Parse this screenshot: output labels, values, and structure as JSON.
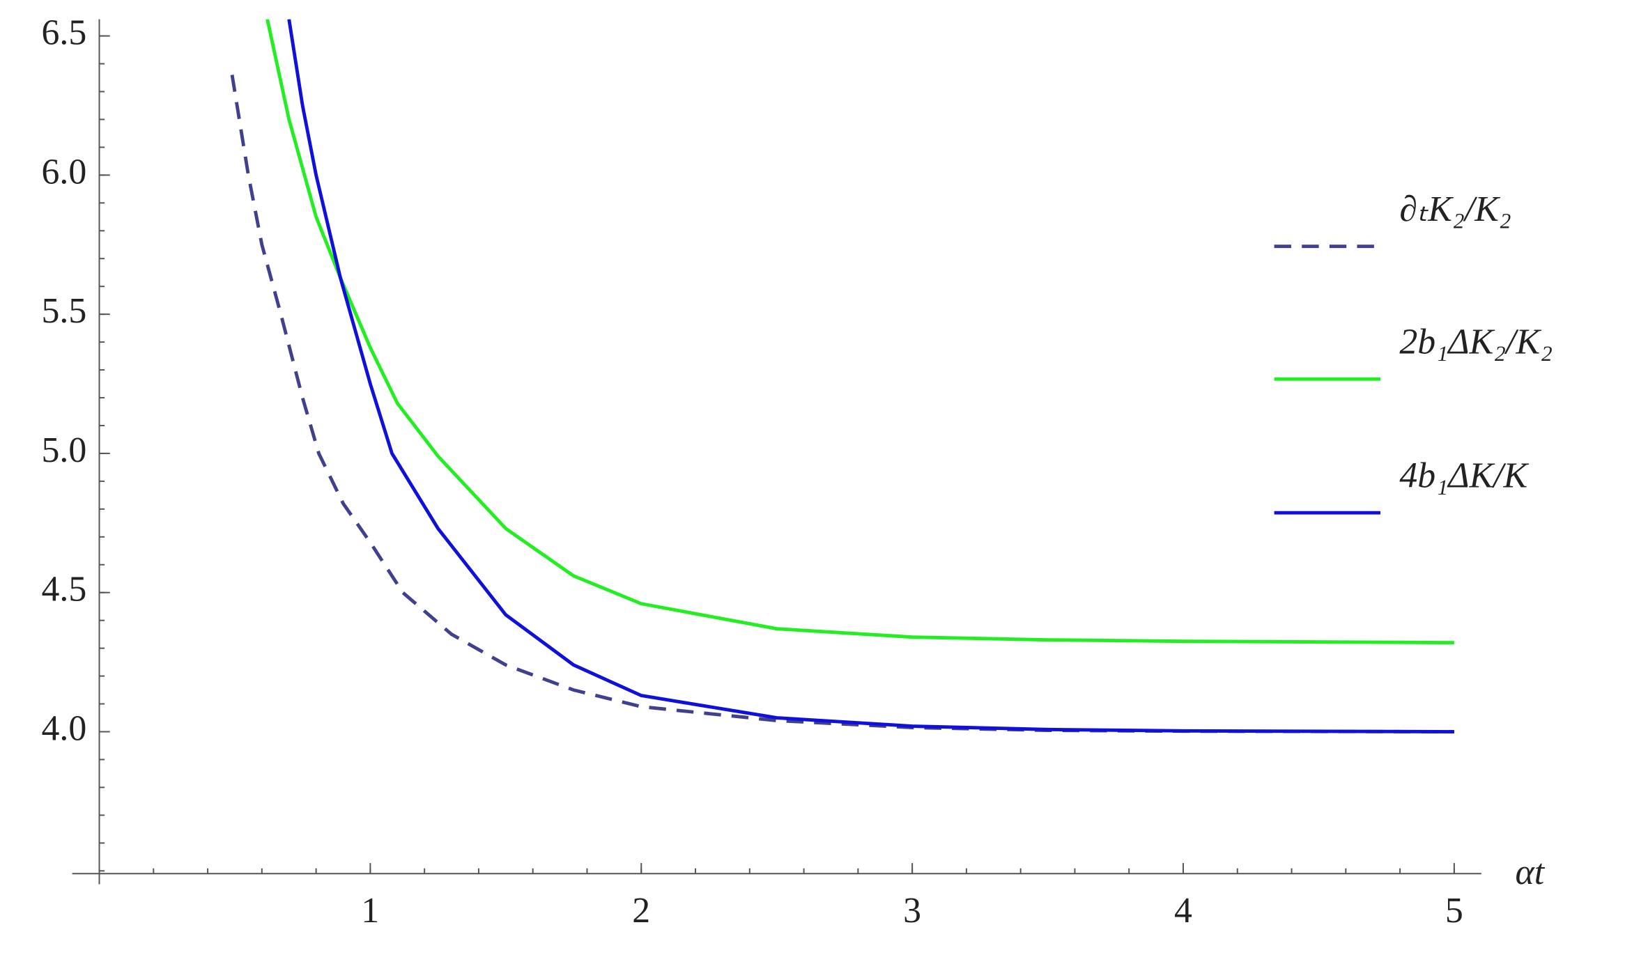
{
  "chart_data": {
    "type": "line",
    "x_label": "αt",
    "xlim": [
      -0.1,
      5.1
    ],
    "ylim": [
      3.49,
      6.56
    ],
    "xticks": [
      1,
      2,
      3,
      4,
      5
    ],
    "yticks": [
      {
        "value": 4,
        "label": "4.0"
      },
      {
        "value": 4.5,
        "label": "4.5"
      },
      {
        "value": 5,
        "label": "5.0"
      },
      {
        "value": 5.5,
        "label": "5.5"
      },
      {
        "value": 6,
        "label": "6.0"
      },
      {
        "value": 6.5,
        "label": "6.5"
      }
    ],
    "legend": "right",
    "series": [
      {
        "name": "∂ₜK₂/K₂",
        "color": "#40408f",
        "dashed": true,
        "x": [
          0.49,
          0.55,
          0.6,
          0.67,
          0.75,
          0.81,
          0.9,
          1.0,
          1.12,
          1.3,
          1.5,
          1.75,
          2.0,
          2.5,
          3.0,
          3.5,
          4.0,
          5.0
        ],
        "values": [
          6.36,
          6.0,
          5.75,
          5.5,
          5.2,
          5.0,
          4.82,
          4.68,
          4.5,
          4.35,
          4.24,
          4.15,
          4.09,
          4.04,
          4.015,
          4.005,
          4.002,
          4.0
        ]
      },
      {
        "name": "2b₁ΔK₂/K₂",
        "color": "#22ee22",
        "dashed": false,
        "x": [
          0.62,
          0.7,
          0.8,
          0.89,
          1.0,
          1.1,
          1.25,
          1.5,
          1.75,
          2.0,
          2.5,
          3.0,
          3.5,
          4.0,
          5.0
        ],
        "values": [
          6.56,
          6.2,
          5.85,
          5.63,
          5.38,
          5.18,
          4.99,
          4.73,
          4.56,
          4.46,
          4.37,
          4.34,
          4.33,
          4.325,
          4.32
        ]
      },
      {
        "name": "4b₁ΔK/K",
        "color": "#1010dd",
        "dashed": false,
        "x": [
          0.7,
          0.75,
          0.8,
          0.89,
          1.0,
          1.08,
          1.25,
          1.5,
          1.75,
          2.0,
          2.5,
          3.0,
          3.5,
          4.0,
          5.0
        ],
        "values": [
          6.56,
          6.25,
          6.0,
          5.63,
          5.25,
          5.0,
          4.73,
          4.42,
          4.24,
          4.13,
          4.05,
          4.02,
          4.008,
          4.003,
          4.0
        ]
      }
    ]
  }
}
